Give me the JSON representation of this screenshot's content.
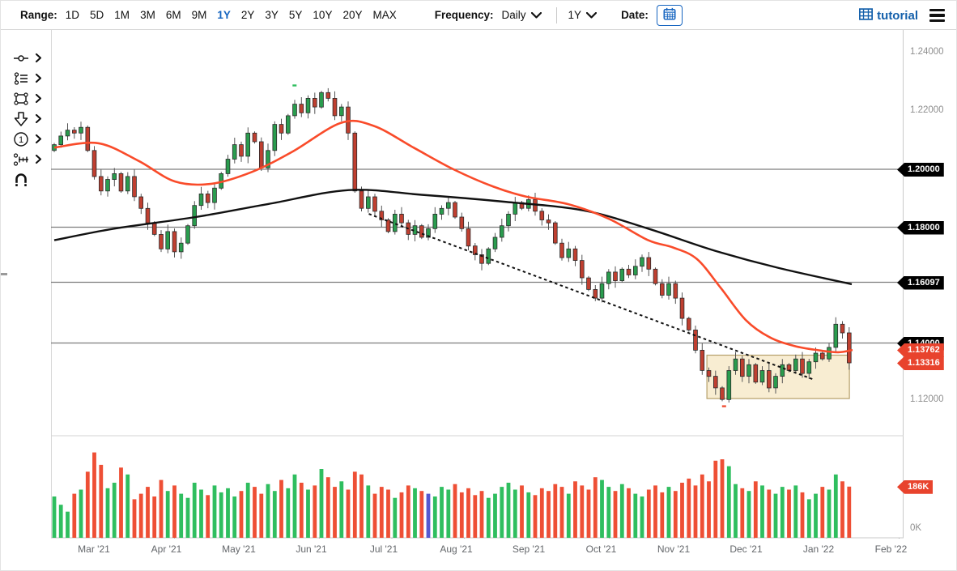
{
  "toolbar": {
    "range": {
      "label": "Range:",
      "options": [
        "1D",
        "5D",
        "1M",
        "3M",
        "6M",
        "9M",
        "1Y",
        "2Y",
        "3Y",
        "5Y",
        "10Y",
        "20Y",
        "MAX"
      ],
      "selected": "1Y"
    },
    "frequency": {
      "label": "Frequency:",
      "value": "Daily"
    },
    "period_select": {
      "value": "1Y"
    },
    "date": {
      "label": "Date:",
      "icon": "calendar-icon"
    },
    "tutorial": {
      "label": "tutorial",
      "icon": "film-icon"
    },
    "menu_icon": "hamburger-icon"
  },
  "drawing_tools": {
    "items": [
      {
        "name": "trendline-tool",
        "has_submenu": true
      },
      {
        "name": "annotation-tool",
        "has_submenu": true
      },
      {
        "name": "shape-tool",
        "has_submenu": true
      },
      {
        "name": "arrow-tool",
        "has_submenu": true
      },
      {
        "name": "number-annotation-tool",
        "has_submenu": true
      },
      {
        "name": "fibonacci-tool",
        "has_submenu": true
      },
      {
        "name": "magnet-tool",
        "has_submenu": false
      }
    ]
  },
  "chart_data": {
    "type": "candlestick",
    "frequency": "Daily",
    "x_axis": {
      "months": [
        "Mar '21",
        "Apr '21",
        "May '21",
        "Jun '21",
        "Jul '21",
        "Aug '21",
        "Sep '21",
        "Oct '21",
        "Nov '21",
        "Dec '21",
        "Jan '22",
        "Feb '22"
      ]
    },
    "y_axis": {
      "price_ticks": [
        "1.24000",
        "1.22000",
        "1.12000"
      ],
      "price_tick_values": [
        1.24,
        1.22,
        1.12
      ],
      "range": [
        1.112,
        1.248
      ],
      "volume_ticks": [
        "0K"
      ]
    },
    "first_open": 1.2065,
    "closes": [
      1.2085,
      1.2115,
      1.2135,
      1.2125,
      1.2145,
      1.2065,
      1.1975,
      1.1925,
      1.1965,
      1.1985,
      1.1925,
      1.1975,
      1.1905,
      1.1865,
      1.1815,
      1.1775,
      1.1725,
      1.1785,
      1.1715,
      1.1745,
      1.1805,
      1.1875,
      1.1915,
      1.1885,
      1.1935,
      1.1985,
      1.2035,
      1.2085,
      1.2045,
      1.2125,
      1.2095,
      1.2005,
      1.2065,
      1.2155,
      1.2125,
      1.2185,
      1.2225,
      1.2195,
      1.2245,
      1.2215,
      1.2265,
      1.2245,
      1.2185,
      1.2215,
      1.2125,
      1.1925,
      1.1865,
      1.1905,
      1.1855,
      1.1825,
      1.1785,
      1.1845,
      1.1815,
      1.1775,
      1.1805,
      1.1765,
      1.1795,
      1.1845,
      1.1865,
      1.1885,
      1.1835,
      1.1795,
      1.1735,
      1.1705,
      1.1675,
      1.1725,
      1.1765,
      1.1805,
      1.1845,
      1.1885,
      1.1865,
      1.1895,
      1.1855,
      1.1825,
      1.1815,
      1.1745,
      1.1695,
      1.1725,
      1.1685,
      1.1625,
      1.1585,
      1.1555,
      1.1605,
      1.1645,
      1.1615,
      1.1655,
      1.1635,
      1.1665,
      1.1695,
      1.1655,
      1.1605,
      1.1565,
      1.1605,
      1.1555,
      1.1485,
      1.1445,
      1.1375,
      1.1305,
      1.1285,
      1.1245,
      1.1205,
      1.1305,
      1.1345,
      1.1285,
      1.1325,
      1.1265,
      1.1305,
      1.1245,
      1.1285,
      1.1325,
      1.1305,
      1.1345,
      1.1295,
      1.1335,
      1.1365,
      1.1345,
      1.1385,
      1.1465,
      1.1435,
      1.13316
    ],
    "volumes_k": [
      150,
      120,
      95,
      160,
      175,
      240,
      310,
      265,
      180,
      200,
      255,
      230,
      140,
      160,
      185,
      150,
      210,
      170,
      190,
      160,
      145,
      200,
      175,
      155,
      190,
      165,
      180,
      150,
      170,
      200,
      185,
      160,
      195,
      170,
      210,
      180,
      230,
      200,
      175,
      190,
      250,
      220,
      185,
      205,
      175,
      240,
      230,
      190,
      160,
      185,
      175,
      145,
      165,
      190,
      180,
      170,
      160,
      150,
      185,
      175,
      195,
      165,
      180,
      155,
      170,
      145,
      160,
      185,
      200,
      175,
      190,
      165,
      155,
      180,
      170,
      195,
      185,
      160,
      205,
      190,
      175,
      220,
      210,
      185,
      170,
      195,
      180,
      160,
      150,
      175,
      190,
      165,
      185,
      170,
      200,
      215,
      190,
      230,
      205,
      280,
      285,
      260,
      195,
      180,
      170,
      205,
      190,
      175,
      160,
      185,
      175,
      190,
      165,
      140,
      160,
      185,
      175,
      230,
      205,
      186
    ],
    "blue_volume_index": 56,
    "latest_volume_label": "186K",
    "levels": [
      1.2,
      1.18,
      1.16097,
      1.14
    ],
    "price_badges_black": [
      {
        "text": "1.20000",
        "value": 1.2
      },
      {
        "text": "1.18000",
        "value": 1.18
      },
      {
        "text": "1.16097",
        "value": 1.16097
      },
      {
        "text": "1.14000",
        "value": 1.14
      }
    ],
    "price_badges_red": [
      {
        "text": "1.13762",
        "value": 1.13762
      },
      {
        "text": "1.13316",
        "value": 1.13316
      }
    ],
    "red_ma": [
      [
        0.0,
        1.2075
      ],
      [
        0.055,
        1.209
      ],
      [
        0.105,
        1.203
      ],
      [
        0.151,
        1.1958
      ],
      [
        0.197,
        1.195
      ],
      [
        0.247,
        1.199
      ],
      [
        0.298,
        1.206
      ],
      [
        0.359,
        1.216
      ],
      [
        0.4,
        1.215
      ],
      [
        0.45,
        1.2075
      ],
      [
        0.5,
        1.2
      ],
      [
        0.55,
        1.194
      ],
      [
        0.592,
        1.1905
      ],
      [
        0.643,
        1.188
      ],
      [
        0.694,
        1.183
      ],
      [
        0.744,
        1.1755
      ],
      [
        0.775,
        1.173
      ],
      [
        0.805,
        1.169
      ],
      [
        0.835,
        1.159
      ],
      [
        0.866,
        1.148
      ],
      [
        0.896,
        1.142
      ],
      [
        0.927,
        1.139
      ],
      [
        0.957,
        1.1375
      ],
      [
        0.982,
        1.1368
      ],
      [
        1.0,
        1.1376
      ]
    ],
    "black_ma": [
      [
        0.0,
        1.1755
      ],
      [
        0.075,
        1.1795
      ],
      [
        0.177,
        1.1835
      ],
      [
        0.268,
        1.188
      ],
      [
        0.369,
        1.1928
      ],
      [
        0.46,
        1.1912
      ],
      [
        0.563,
        1.1888
      ],
      [
        0.663,
        1.1858
      ],
      [
        0.744,
        1.1795
      ],
      [
        0.826,
        1.172
      ],
      [
        0.906,
        1.166
      ],
      [
        0.999,
        1.1603
      ]
    ],
    "trendline": {
      "t0": 0.394,
      "p0": 1.1846,
      "t1": 0.952,
      "p1": 1.1273,
      "style": "dashed"
    },
    "range_box": {
      "t0": 0.8175,
      "t1": 0.996,
      "p_top": 1.1358,
      "p_bottom": 1.1208
    },
    "markers": [
      {
        "t": 0.301,
        "p": 1.229,
        "type": "high-marker",
        "color": "#2fbe5f"
      },
      {
        "t": 0.839,
        "p": 1.1182,
        "type": "low-marker",
        "color": "#ee4f35"
      }
    ]
  },
  "colors": {
    "accent_blue": "#1665c0",
    "candle_up": "#2a9c4e",
    "candle_down": "#bf3f30",
    "candle_stroke": "#2b2b2b",
    "volume_up": "#2fbe5f",
    "volume_down": "#ee4f35",
    "volume_blue": "#5658cf",
    "red_ma_line": "#f94b2a",
    "black_ma_line": "#111111",
    "level_line": "#7d7d7d",
    "box_fill": "#f8edd2",
    "box_border": "#b6a06a",
    "badge_black": "#000000",
    "badge_red": "#e8432d",
    "axis_text": "#8e8e8e"
  }
}
